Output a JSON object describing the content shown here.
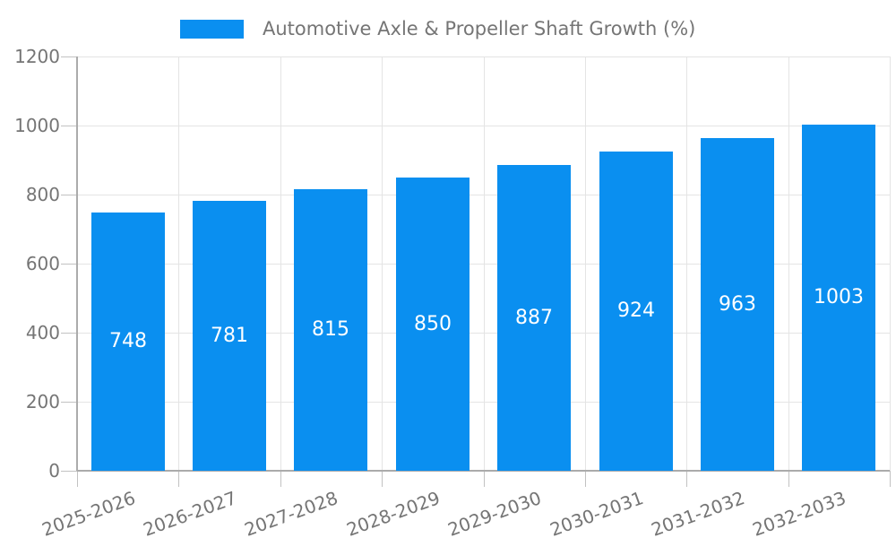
{
  "chart_data": {
    "type": "bar",
    "title": "Automotive Axle & Propeller Shaft Growth (%)",
    "categories": [
      "2025-2026",
      "2026-2027",
      "2027-2028",
      "2028-2029",
      "2029-2030",
      "2030-2031",
      "2031-2032",
      "2032-2033"
    ],
    "values": [
      748,
      781,
      815,
      850,
      887,
      924,
      963,
      1003
    ],
    "yticks": [
      0,
      200,
      400,
      600,
      800,
      1000,
      1200
    ],
    "ylim": [
      0,
      1200
    ],
    "xlabel": "",
    "ylabel": "",
    "grid": true,
    "legend_position": "top-center",
    "x_label_rotation_deg": -20,
    "colors": {
      "bar": "#0a8ff0",
      "axis_text": "#757575",
      "legend_text": "#757575",
      "gridline": "#e4e4e4",
      "axis_line": "#ababab",
      "tick": "#c2c2c2",
      "value_label": "#ffffff",
      "background": "#ffffff"
    }
  }
}
